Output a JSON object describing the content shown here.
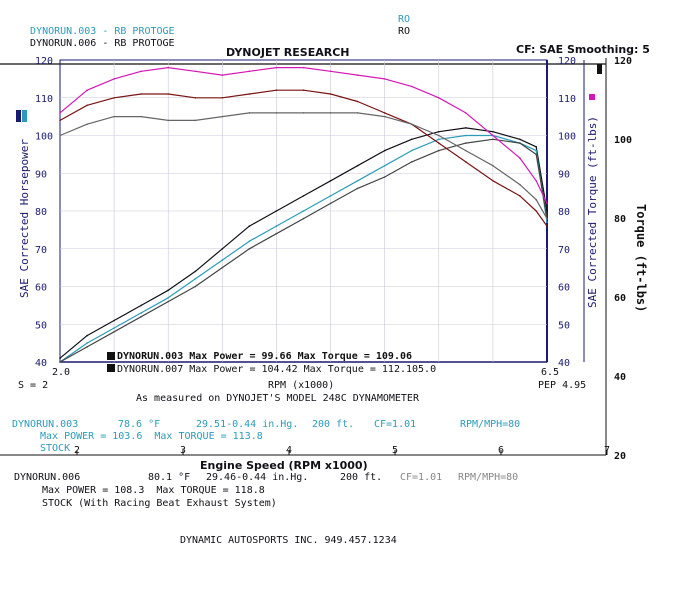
{
  "header": {
    "run1_file": "DYNORUN.003",
    "run1_sep": "-",
    "run1_name": "RB PROTOGE",
    "run1_code": "RO",
    "run2_file": "DYNORUN.006",
    "run2_sep": "-",
    "run2_name": "RB PROTOGE",
    "run2_code": "RO",
    "brand": "DYNOJET RESEARCH",
    "correction": "CF: SAE Smoothing: 5"
  },
  "inner_chart": {
    "ylabel_left": "SAE Corrected Horsepower",
    "ylabel_right": "SAE Corrected Torque (ft-lbs)",
    "xlabel": "RPM (x1000)",
    "x_min_label": "2.0",
    "x_max_label": "6.5",
    "smoothing_label": "S = 2",
    "pep_label": "PEP 4.95",
    "hp_ticks": [
      "40",
      "50",
      "60",
      "70",
      "80",
      "90",
      "100",
      "110",
      "120"
    ],
    "tq_ticks": [
      "40",
      "50",
      "60",
      "70",
      "80",
      "90",
      "100",
      "110",
      "120"
    ],
    "legend": [
      {
        "text": "DYNORUN.003 Max Power = 99.66     Max Torque = 109.06"
      },
      {
        "text": "DYNORUN.007 Max Power = 104.42   Max Torque = 112.105.0"
      }
    ],
    "measured": "As measured on DYNOJET'S MODEL 248C DYNAMOMETER"
  },
  "outer_chart": {
    "torque_label": "Torque (ft-lbs)",
    "xlabel": "Engine Speed (RPM x1000)",
    "x_ticks": [
      "2",
      "3",
      "4",
      "5",
      "6",
      "7"
    ],
    "y_ticks": [
      "120",
      "100",
      "80",
      "60",
      "40",
      "20"
    ]
  },
  "run_info": {
    "run1": {
      "name": "DYNORUN.003",
      "temp": "78.6 °F",
      "baro": "29.51-0.44 in.Hg.",
      "elev": "200 ft.",
      "cf": "CF=1.01",
      "rpm": "RPM/MPH=80"
    },
    "run1_max": "Max POWER = 103.6  Max TORQUE = 113.8",
    "run1_desc": "STOCK",
    "run2": {
      "name": "DYNORUN.006",
      "temp": "80.1 °F",
      "baro": "29.46-0.44 in.Hg.",
      "elev": "200 ft.",
      "cf": "CF=1.01",
      "rpm": "RPM/MPH=80"
    },
    "run2_max": "Max POWER = 108.3  Max TORQUE = 118.8",
    "run2_desc": "STOCK (With Racing Beat Exhaust System)"
  },
  "footer": "DYNAMIC AUTOSPORTS INC. 949.457.1234",
  "colors": {
    "run1": "#2b9bb8",
    "run2": "#101018",
    "torque_mod": "#d418b6",
    "torque_stock": "#7a1414",
    "hp_dyno007": "#444444",
    "hp_stock_grey": "#666666",
    "axis": "#1a1a70"
  },
  "chart_data": {
    "type": "line",
    "title": "DYNOJET RESEARCH",
    "xlabel": "RPM (x1000)",
    "ylabel": "SAE Corrected Horsepower",
    "y2label": "SAE Corrected Torque (ft-lbs)",
    "xlim": [
      2.0,
      6.5
    ],
    "ylim": [
      40,
      120
    ],
    "grid": true,
    "series": [
      {
        "name": "DYNORUN.006",
        "role": "power",
        "color": "#101018",
        "x": [
          2.0,
          2.25,
          2.5,
          2.75,
          3.0,
          3.25,
          3.5,
          3.75,
          4.0,
          4.25,
          4.5,
          4.75,
          5.0,
          5.25,
          5.5,
          5.75,
          6.0,
          6.25,
          6.4,
          6.5
        ],
        "y": [
          41,
          47,
          51,
          55,
          59,
          64,
          70,
          76,
          80,
          84,
          88,
          92,
          96,
          99,
          101,
          102,
          101,
          99,
          97,
          80
        ]
      },
      {
        "name": "DYNORUN.003",
        "role": "power",
        "color": "#2b9bb8",
        "x": [
          2.0,
          2.25,
          2.5,
          2.75,
          3.0,
          3.25,
          3.5,
          3.75,
          4.0,
          4.25,
          4.5,
          4.75,
          5.0,
          5.25,
          5.5,
          5.75,
          6.0,
          6.25,
          6.4,
          6.5
        ],
        "y": [
          40,
          45,
          49,
          53,
          57,
          62,
          67,
          72,
          76,
          80,
          84,
          88,
          92,
          96,
          99,
          100,
          100,
          98,
          96,
          77
        ]
      },
      {
        "name": "DYNORUN.007",
        "role": "power",
        "color": "#444444",
        "x": [
          2.0,
          2.25,
          2.5,
          2.75,
          3.0,
          3.25,
          3.5,
          3.75,
          4.0,
          4.25,
          4.5,
          4.75,
          5.0,
          5.25,
          5.5,
          5.75,
          6.0,
          6.25,
          6.4,
          6.5
        ],
        "y": [
          40,
          44,
          48,
          52,
          56,
          60,
          65,
          70,
          74,
          78,
          82,
          86,
          89,
          93,
          96,
          98,
          99,
          98,
          95,
          78
        ]
      },
      {
        "name": "DYNORUN.006",
        "role": "torque",
        "color": "#d418b6",
        "x": [
          2.0,
          2.25,
          2.5,
          2.75,
          3.0,
          3.25,
          3.5,
          3.75,
          4.0,
          4.25,
          4.5,
          4.75,
          5.0,
          5.25,
          5.5,
          5.75,
          6.0,
          6.25,
          6.4,
          6.5
        ],
        "y": [
          106,
          112,
          115,
          117,
          118,
          117,
          116,
          117,
          118,
          118,
          117,
          116,
          115,
          113,
          110,
          106,
          100,
          94,
          88,
          82
        ]
      },
      {
        "name": "DYNORUN.003",
        "role": "torque",
        "color": "#7a1414",
        "x": [
          2.0,
          2.25,
          2.5,
          2.75,
          3.0,
          3.25,
          3.5,
          3.75,
          4.0,
          4.25,
          4.5,
          4.75,
          5.0,
          5.25,
          5.5,
          5.75,
          6.0,
          6.25,
          6.4,
          6.5
        ],
        "y": [
          104,
          108,
          110,
          111,
          111,
          110,
          110,
          111,
          112,
          112,
          111,
          109,
          106,
          103,
          98,
          93,
          88,
          84,
          80,
          76
        ]
      },
      {
        "name": "DYNORUN.003",
        "role": "torque",
        "color": "#666666",
        "x": [
          2.0,
          2.25,
          2.5,
          2.75,
          3.0,
          3.25,
          3.5,
          3.75,
          4.0,
          4.25,
          4.5,
          4.75,
          5.0,
          5.25,
          5.5,
          5.75,
          6.0,
          6.25,
          6.4,
          6.5
        ],
        "y": [
          100,
          103,
          105,
          105,
          104,
          104,
          105,
          106,
          106,
          106,
          106,
          106,
          105,
          103,
          100,
          96,
          92,
          87,
          83,
          78
        ]
      }
    ]
  }
}
